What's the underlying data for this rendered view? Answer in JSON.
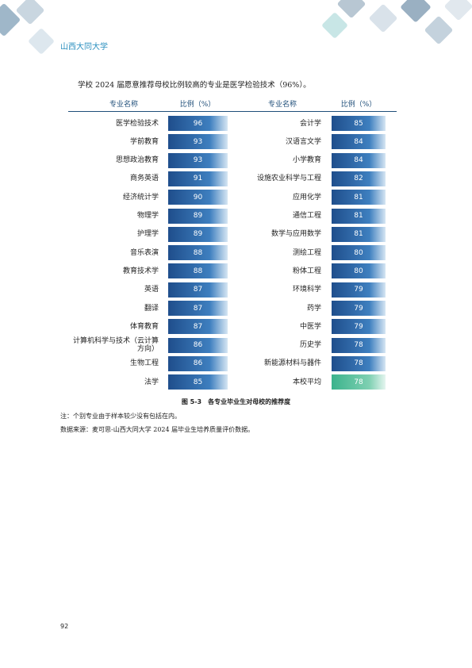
{
  "header": {
    "title": "山西大同大学"
  },
  "intro": "学校 2024 届愿意推荐母校比例较高的专业是医学检验技术（96%）。",
  "table": {
    "columns": [
      "专业名称",
      "比例（%）",
      "专业名称",
      "比例（%）"
    ],
    "rows": [
      [
        "医学检验技术",
        96,
        "会计学",
        85
      ],
      [
        "学前教育",
        93,
        "汉语言文学",
        84
      ],
      [
        "思想政治教育",
        93,
        "小学教育",
        84
      ],
      [
        "商务英语",
        91,
        "设施农业科学与工程",
        82
      ],
      [
        "经济统计学",
        90,
        "应用化学",
        81
      ],
      [
        "物理学",
        89,
        "通信工程",
        81
      ],
      [
        "护理学",
        89,
        "数学与应用数学",
        81
      ],
      [
        "音乐表演",
        88,
        "测绘工程",
        80
      ],
      [
        "教育技术学",
        88,
        "粉体工程",
        80
      ],
      [
        "英语",
        87,
        "环境科学",
        79
      ],
      [
        "翻译",
        87,
        "药学",
        79
      ],
      [
        "体育教育",
        87,
        "中医学",
        79
      ],
      [
        "计算机科学与技术（云计算方向）",
        86,
        "历史学",
        78
      ],
      [
        "生物工程",
        86,
        "新能源材料与器件",
        78
      ],
      [
        "法学",
        85,
        "本校平均",
        78
      ]
    ]
  },
  "caption": "图 5-3　各专业毕业生对母校的推荐度",
  "notes": [
    "注：个别专业由于样本较少没有包括在内。",
    "数据来源：麦可思-山西大同大学 2024 届毕业生培养质量评价数据。"
  ],
  "page_number": "92"
}
